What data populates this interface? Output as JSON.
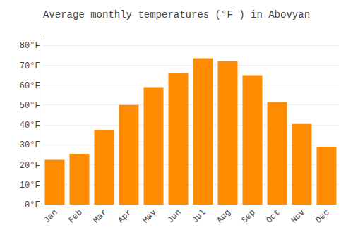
{
  "chart_data": {
    "type": "bar",
    "title": "Average monthly temperatures (°F ) in Abovyan",
    "categories": [
      "Jan",
      "Feb",
      "Mar",
      "Apr",
      "May",
      "Jun",
      "Jul",
      "Aug",
      "Sep",
      "Oct",
      "Nov",
      "Dec"
    ],
    "values": [
      22.5,
      25.5,
      37.5,
      50.0,
      59.0,
      66.0,
      73.5,
      72.0,
      65.0,
      51.5,
      40.5,
      29.0
    ],
    "color": "#FF8C00",
    "ylim": [
      0,
      85
    ],
    "yticks": [
      {
        "value": 0,
        "label": "0°F"
      },
      {
        "value": 10,
        "label": "10°F"
      },
      {
        "value": 20,
        "label": "20°F"
      },
      {
        "value": 30,
        "label": "30°F"
      },
      {
        "value": 40,
        "label": "40°F"
      },
      {
        "value": 50,
        "label": "50°F"
      },
      {
        "value": 60,
        "label": "60°F"
      },
      {
        "value": 70,
        "label": "70°F"
      },
      {
        "value": 80,
        "label": "80°F"
      }
    ],
    "grid": true
  }
}
